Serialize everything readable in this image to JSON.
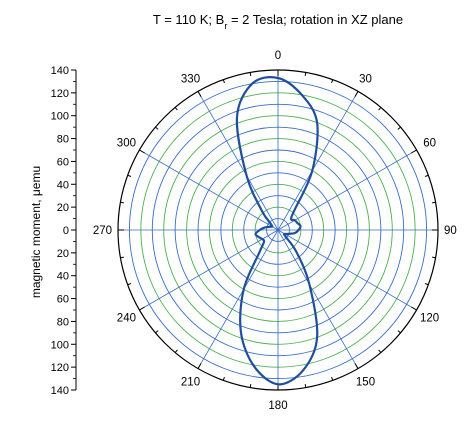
{
  "chart_data": {
    "type": "line",
    "coordinate_system": "polar",
    "title_parts": {
      "prefix": "T = 110 K; B",
      "subscript": "r",
      "suffix": " = 2 Tesla; rotation in XZ plane"
    },
    "ylabel": "magnetic moment, μemu",
    "radial_axis": {
      "range": [
        0,
        140
      ],
      "tick_labels": [
        "140",
        "120",
        "100",
        "80",
        "60",
        "40",
        "20",
        "0",
        "20",
        "40",
        "60",
        "80",
        "100",
        "120",
        "140"
      ],
      "tick_values": [
        140,
        120,
        100,
        80,
        60,
        40,
        20,
        0,
        20,
        40,
        60,
        80,
        100,
        120,
        140
      ]
    },
    "angular_axis": {
      "unit": "degrees",
      "zero_direction": "top",
      "direction": "clockwise",
      "tick_labels": [
        "0",
        "30",
        "60",
        "90",
        "120",
        "150",
        "180",
        "210",
        "240",
        "270",
        "300",
        "330"
      ],
      "tick_values": [
        0,
        30,
        60,
        90,
        120,
        150,
        180,
        210,
        240,
        270,
        300,
        330
      ]
    },
    "grid": {
      "circle_step": 10,
      "spoke_step": 30,
      "colors": [
        "#3a6dc4",
        "#4caf50"
      ]
    },
    "series": [
      {
        "color": "#1f4f9a",
        "theta": [
          0,
          10,
          20,
          30,
          40,
          50,
          60,
          70,
          80,
          90,
          100,
          110,
          120,
          130,
          140,
          150,
          160,
          170,
          180,
          190,
          200,
          210,
          220,
          230,
          240,
          250,
          260,
          270,
          280,
          290,
          300,
          310,
          320,
          330,
          340,
          350,
          360
        ],
        "r": [
          133,
          120,
          100,
          60,
          22,
          15,
          17,
          18,
          20,
          18,
          15,
          10,
          7,
          8,
          25,
          55,
          100,
          125,
          135,
          121,
          95,
          60,
          25,
          16,
          16,
          18,
          20,
          16,
          12,
          8,
          6,
          8,
          22,
          55,
          105,
          130,
          133
        ]
      }
    ]
  }
}
